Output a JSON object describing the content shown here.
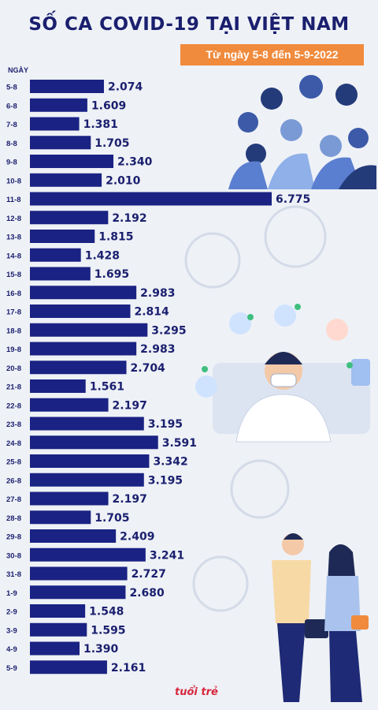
{
  "header": {
    "title": "SỐ CA COVID-19 TẠI VIỆT NAM",
    "subtitle": "Từ ngày 5-8 đến 5-9-2022",
    "axis_label": "NGÀY"
  },
  "logo_text": "tuổi trẻ",
  "colors": {
    "bar": "#1a2283",
    "title": "#1a1f6e",
    "badge": "#f08a3c"
  },
  "chart_data": {
    "type": "bar",
    "orientation": "horizontal",
    "title": "SỐ CA COVID-19 TẠI VIỆT NAM",
    "subtitle": "Từ ngày 5-8 đến 5-9-2022",
    "ylabel": "NGÀY",
    "categories": [
      "5-8",
      "6-8",
      "7-8",
      "8-8",
      "9-8",
      "10-8",
      "11-8",
      "12-8",
      "13-8",
      "14-8",
      "15-8",
      "16-8",
      "17-8",
      "18-8",
      "19-8",
      "20-8",
      "21-8",
      "22-8",
      "23-8",
      "24-8",
      "25-8",
      "26-8",
      "27-8",
      "28-8",
      "29-8",
      "30-8",
      "31-8",
      "1-9",
      "2-9",
      "3-9",
      "4-9",
      "5-9"
    ],
    "values": [
      2074,
      1609,
      1381,
      1705,
      2340,
      2010,
      6775,
      2192,
      1815,
      1428,
      1695,
      2983,
      2814,
      3295,
      2983,
      2704,
      1561,
      2197,
      3195,
      3591,
      3342,
      3195,
      2197,
      1705,
      2409,
      3241,
      2727,
      2680,
      1548,
      1595,
      1390,
      2161
    ],
    "value_labels": [
      "2.074",
      "1.609",
      "1.381",
      "1.705",
      "2.340",
      "2.010",
      "6.775",
      "2.192",
      "1.815",
      "1.428",
      "1.695",
      "2.983",
      "2.814",
      "3.295",
      "2.983",
      "2.704",
      "1.561",
      "2.197",
      "3.195",
      "3.591",
      "3.342",
      "3.195",
      "2.197",
      "1.705",
      "2.409",
      "3.241",
      "2.727",
      "2.680",
      "1.548",
      "1.595",
      "1.390",
      "2.161"
    ],
    "xlim": [
      0,
      6775
    ],
    "grid": false,
    "legend": "none"
  }
}
